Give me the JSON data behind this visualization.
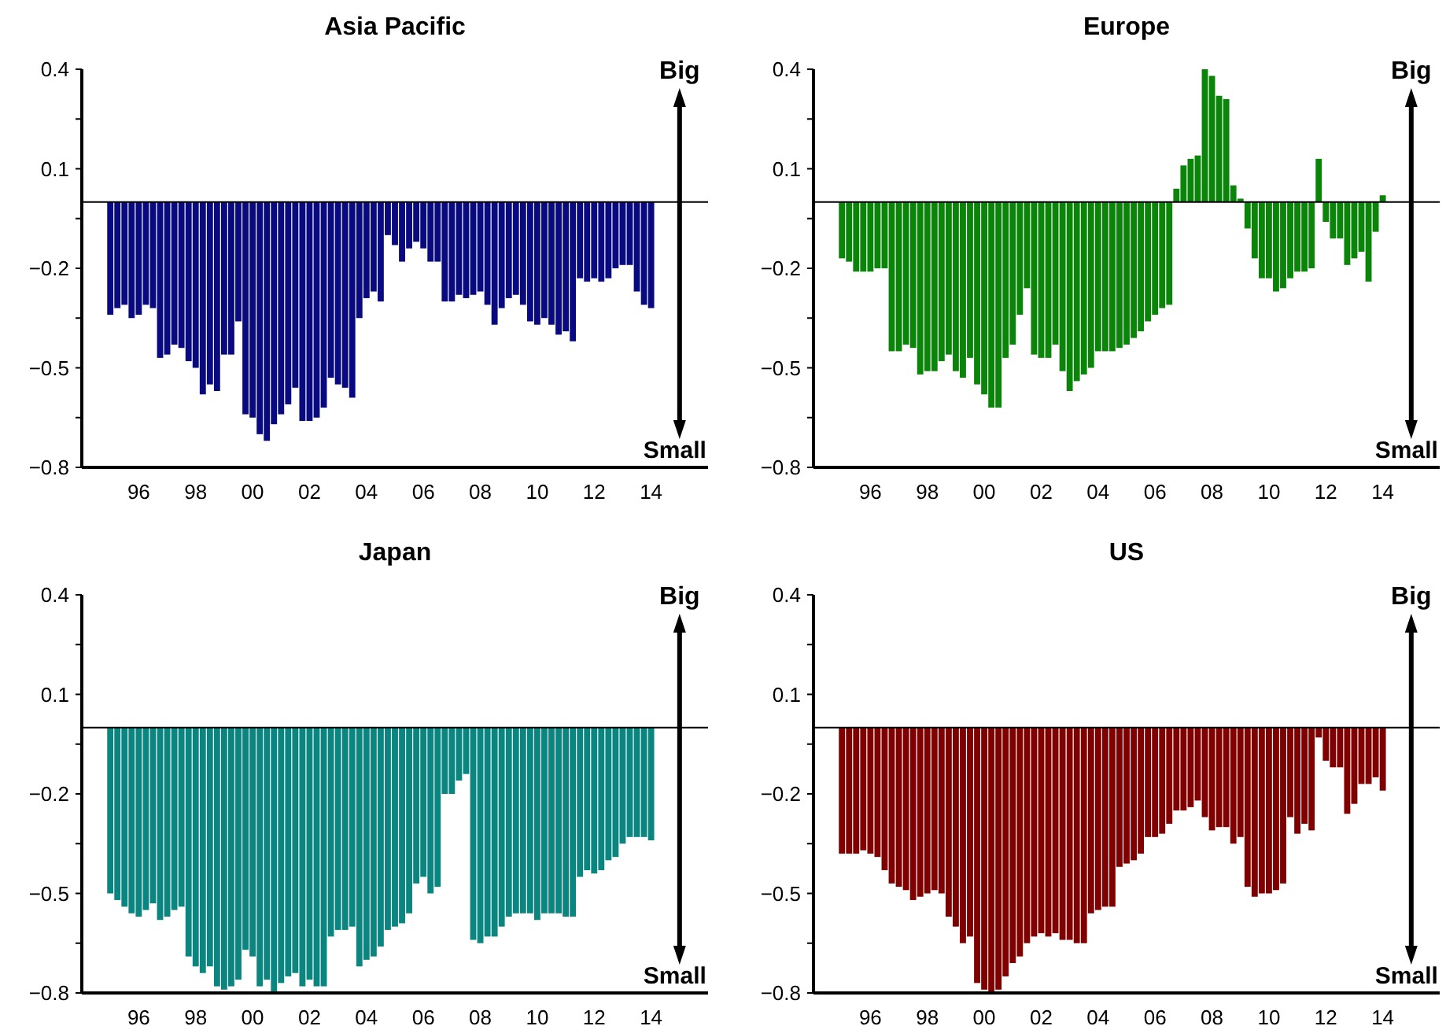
{
  "chart_data": [
    {
      "type": "bar",
      "title": "Asia Pacific",
      "color": "#0a0a80",
      "xlim": [
        1994,
        2016
      ],
      "ylim": [
        -0.8,
        0.4
      ],
      "xticks": [
        {
          "value": 1996,
          "label": "96"
        },
        {
          "value": 1998,
          "label": "98"
        },
        {
          "value": 2000,
          "label": "00"
        },
        {
          "value": 2002,
          "label": "02"
        },
        {
          "value": 2004,
          "label": "04"
        },
        {
          "value": 2006,
          "label": "06"
        },
        {
          "value": 2008,
          "label": "08"
        },
        {
          "value": 2010,
          "label": "10"
        },
        {
          "value": 2012,
          "label": "12"
        },
        {
          "value": 2014,
          "label": "14"
        }
      ],
      "yticks": [
        -0.8,
        {
          "value": -0.65,
          "label": null
        },
        -0.5,
        {
          "value": -0.35,
          "label": null
        },
        -0.2,
        {
          "value": -0.05,
          "label": null
        },
        0.1,
        {
          "value": 0.25,
          "label": null
        },
        0.4
      ],
      "ref_lines": [
        {
          "axis": "y",
          "value": 0,
          "color": "#000000"
        }
      ],
      "annotations": [
        "Big",
        "Small"
      ],
      "x": [
        1995,
        1995.25,
        1995.5,
        1995.75,
        1996,
        1996.25,
        1996.5,
        1996.75,
        1997,
        1997.25,
        1997.5,
        1997.75,
        1998,
        1998.25,
        1998.5,
        1998.75,
        1999,
        1999.25,
        1999.5,
        1999.75,
        2000,
        2000.25,
        2000.5,
        2000.75,
        2001,
        2001.25,
        2001.5,
        2001.75,
        2002,
        2002.25,
        2002.5,
        2002.75,
        2003,
        2003.25,
        2003.5,
        2003.75,
        2004,
        2004.25,
        2004.5,
        2004.75,
        2005,
        2005.25,
        2005.5,
        2005.75,
        2006,
        2006.25,
        2006.5,
        2006.75,
        2007,
        2007.25,
        2007.5,
        2007.75,
        2008,
        2008.25,
        2008.5,
        2008.75,
        2009,
        2009.25,
        2009.5,
        2009.75,
        2010,
        2010.25,
        2010.5,
        2010.75,
        2011,
        2011.25,
        2011.5,
        2011.75,
        2012,
        2012.25,
        2012.5,
        2012.75,
        2013,
        2013.25,
        2013.5,
        2013.75,
        2014
      ],
      "values": [
        -0.34,
        -0.32,
        -0.31,
        -0.35,
        -0.34,
        -0.31,
        -0.32,
        -0.47,
        -0.46,
        -0.43,
        -0.44,
        -0.48,
        -0.5,
        -0.58,
        -0.55,
        -0.57,
        -0.46,
        -0.46,
        -0.36,
        -0.64,
        -0.65,
        -0.7,
        -0.72,
        -0.67,
        -0.64,
        -0.61,
        -0.56,
        -0.66,
        -0.66,
        -0.65,
        -0.62,
        -0.53,
        -0.55,
        -0.56,
        -0.59,
        -0.35,
        -0.29,
        -0.27,
        -0.3,
        -0.1,
        -0.13,
        -0.18,
        -0.14,
        -0.12,
        -0.14,
        -0.18,
        -0.18,
        -0.3,
        -0.3,
        -0.28,
        -0.29,
        -0.28,
        -0.27,
        -0.31,
        -0.37,
        -0.32,
        -0.29,
        -0.28,
        -0.31,
        -0.36,
        -0.37,
        -0.35,
        -0.37,
        -0.4,
        -0.39,
        -0.42,
        -0.23,
        -0.24,
        -0.23,
        -0.24,
        -0.23,
        -0.2,
        -0.19,
        -0.19,
        -0.27,
        -0.31,
        -0.32
      ]
    },
    {
      "type": "bar",
      "title": "Europe",
      "color": "#0a850a",
      "xlim": [
        1994,
        2016
      ],
      "ylim": [
        -0.8,
        0.4
      ],
      "xticks": [
        {
          "value": 1996,
          "label": "96"
        },
        {
          "value": 1998,
          "label": "98"
        },
        {
          "value": 2000,
          "label": "00"
        },
        {
          "value": 2002,
          "label": "02"
        },
        {
          "value": 2004,
          "label": "04"
        },
        {
          "value": 2006,
          "label": "06"
        },
        {
          "value": 2008,
          "label": "08"
        },
        {
          "value": 2010,
          "label": "10"
        },
        {
          "value": 2012,
          "label": "12"
        },
        {
          "value": 2014,
          "label": "14"
        }
      ],
      "yticks": [
        -0.8,
        {
          "value": -0.65,
          "label": null
        },
        -0.5,
        {
          "value": -0.35,
          "label": null
        },
        -0.2,
        {
          "value": -0.05,
          "label": null
        },
        0.1,
        {
          "value": 0.25,
          "label": null
        },
        0.4
      ],
      "ref_lines": [
        {
          "axis": "y",
          "value": 0,
          "color": "#000000"
        }
      ],
      "annotations": [
        "Big",
        "Small"
      ],
      "x": [
        1995,
        1995.25,
        1995.5,
        1995.75,
        1996,
        1996.25,
        1996.5,
        1996.75,
        1997,
        1997.25,
        1997.5,
        1997.75,
        1998,
        1998.25,
        1998.5,
        1998.75,
        1999,
        1999.25,
        1999.5,
        1999.75,
        2000,
        2000.25,
        2000.5,
        2000.75,
        2001,
        2001.25,
        2001.5,
        2001.75,
        2002,
        2002.25,
        2002.5,
        2002.75,
        2003,
        2003.25,
        2003.5,
        2003.75,
        2004,
        2004.25,
        2004.5,
        2004.75,
        2005,
        2005.25,
        2005.5,
        2005.75,
        2006,
        2006.25,
        2006.5,
        2006.75,
        2007,
        2007.25,
        2007.5,
        2007.75,
        2008,
        2008.25,
        2008.5,
        2008.75,
        2009,
        2009.25,
        2009.5,
        2009.75,
        2010,
        2010.25,
        2010.5,
        2010.75,
        2011,
        2011.25,
        2011.5,
        2011.75,
        2012,
        2012.25,
        2012.5,
        2012.75,
        2013,
        2013.25,
        2013.5,
        2013.75,
        2014
      ],
      "values": [
        -0.17,
        -0.18,
        -0.21,
        -0.21,
        -0.21,
        -0.2,
        -0.2,
        -0.45,
        -0.45,
        -0.43,
        -0.44,
        -0.52,
        -0.51,
        -0.51,
        -0.48,
        -0.46,
        -0.51,
        -0.53,
        -0.47,
        -0.55,
        -0.58,
        -0.62,
        -0.62,
        -0.47,
        -0.43,
        -0.34,
        -0.26,
        -0.46,
        -0.47,
        -0.47,
        -0.43,
        -0.51,
        -0.57,
        -0.54,
        -0.52,
        -0.5,
        -0.45,
        -0.45,
        -0.45,
        -0.44,
        -0.43,
        -0.41,
        -0.39,
        -0.36,
        -0.34,
        -0.32,
        -0.31,
        0.04,
        0.11,
        0.13,
        0.14,
        0.4,
        0.38,
        0.32,
        0.31,
        0.05,
        0.01,
        -0.08,
        -0.17,
        -0.23,
        -0.23,
        -0.27,
        -0.26,
        -0.23,
        -0.21,
        -0.21,
        -0.2,
        0.13,
        -0.06,
        -0.11,
        -0.11,
        -0.19,
        -0.17,
        -0.15,
        -0.24,
        -0.09,
        0.02
      ]
    },
    {
      "type": "bar",
      "title": "Japan",
      "color": "#0a857f",
      "xlim": [
        1994,
        2016
      ],
      "ylim": [
        -0.8,
        0.4
      ],
      "xticks": [
        {
          "value": 1996,
          "label": "96"
        },
        {
          "value": 1998,
          "label": "98"
        },
        {
          "value": 2000,
          "label": "00"
        },
        {
          "value": 2002,
          "label": "02"
        },
        {
          "value": 2004,
          "label": "04"
        },
        {
          "value": 2006,
          "label": "06"
        },
        {
          "value": 2008,
          "label": "08"
        },
        {
          "value": 2010,
          "label": "10"
        },
        {
          "value": 2012,
          "label": "12"
        },
        {
          "value": 2014,
          "label": "14"
        }
      ],
      "yticks": [
        -0.8,
        {
          "value": -0.65,
          "label": null
        },
        -0.5,
        {
          "value": -0.35,
          "label": null
        },
        -0.2,
        {
          "value": -0.05,
          "label": null
        },
        0.1,
        {
          "value": 0.25,
          "label": null
        },
        0.4
      ],
      "ref_lines": [
        {
          "axis": "y",
          "value": 0,
          "color": "#000000"
        }
      ],
      "annotations": [
        "Big",
        "Small"
      ],
      "x": [
        1995,
        1995.25,
        1995.5,
        1995.75,
        1996,
        1996.25,
        1996.5,
        1996.75,
        1997,
        1997.25,
        1997.5,
        1997.75,
        1998,
        1998.25,
        1998.5,
        1998.75,
        1999,
        1999.25,
        1999.5,
        1999.75,
        2000,
        2000.25,
        2000.5,
        2000.75,
        2001,
        2001.25,
        2001.5,
        2001.75,
        2002,
        2002.25,
        2002.5,
        2002.75,
        2003,
        2003.25,
        2003.5,
        2003.75,
        2004,
        2004.25,
        2004.5,
        2004.75,
        2005,
        2005.25,
        2005.5,
        2005.75,
        2006,
        2006.25,
        2006.5,
        2006.75,
        2007,
        2007.25,
        2007.5,
        2007.75,
        2008,
        2008.25,
        2008.5,
        2008.75,
        2009,
        2009.25,
        2009.5,
        2009.75,
        2010,
        2010.25,
        2010.5,
        2010.75,
        2011,
        2011.25,
        2011.5,
        2011.75,
        2012,
        2012.25,
        2012.5,
        2012.75,
        2013,
        2013.25,
        2013.5,
        2013.75,
        2014
      ],
      "values": [
        -0.5,
        -0.52,
        -0.54,
        -0.56,
        -0.57,
        -0.55,
        -0.53,
        -0.58,
        -0.57,
        -0.55,
        -0.54,
        -0.69,
        -0.72,
        -0.74,
        -0.72,
        -0.78,
        -0.79,
        -0.78,
        -0.76,
        -0.67,
        -0.69,
        -0.78,
        -0.76,
        -0.8,
        -0.77,
        -0.75,
        -0.74,
        -0.78,
        -0.76,
        -0.78,
        -0.78,
        -0.63,
        -0.61,
        -0.61,
        -0.6,
        -0.72,
        -0.7,
        -0.69,
        -0.66,
        -0.61,
        -0.6,
        -0.59,
        -0.56,
        -0.47,
        -0.45,
        -0.5,
        -0.48,
        -0.2,
        -0.2,
        -0.16,
        -0.14,
        -0.64,
        -0.65,
        -0.63,
        -0.63,
        -0.6,
        -0.57,
        -0.56,
        -0.56,
        -0.56,
        -0.58,
        -0.56,
        -0.56,
        -0.56,
        -0.57,
        -0.57,
        -0.45,
        -0.43,
        -0.44,
        -0.43,
        -0.4,
        -0.39,
        -0.35,
        -0.33,
        -0.33,
        -0.33,
        -0.34
      ]
    },
    {
      "type": "bar",
      "title": "US",
      "color": "#800000",
      "xlim": [
        1994,
        2016
      ],
      "ylim": [
        -0.8,
        0.4
      ],
      "xticks": [
        {
          "value": 1996,
          "label": "96"
        },
        {
          "value": 1998,
          "label": "98"
        },
        {
          "value": 2000,
          "label": "00"
        },
        {
          "value": 2002,
          "label": "02"
        },
        {
          "value": 2004,
          "label": "04"
        },
        {
          "value": 2006,
          "label": "06"
        },
        {
          "value": 2008,
          "label": "08"
        },
        {
          "value": 2010,
          "label": "10"
        },
        {
          "value": 2012,
          "label": "12"
        },
        {
          "value": 2014,
          "label": "14"
        }
      ],
      "yticks": [
        -0.8,
        {
          "value": -0.65,
          "label": null
        },
        -0.5,
        {
          "value": -0.35,
          "label": null
        },
        -0.2,
        {
          "value": -0.05,
          "label": null
        },
        0.1,
        {
          "value": 0.25,
          "label": null
        },
        0.4
      ],
      "ref_lines": [
        {
          "axis": "y",
          "value": 0,
          "color": "#000000"
        }
      ],
      "annotations": [
        "Big",
        "Small"
      ],
      "x": [
        1995,
        1995.25,
        1995.5,
        1995.75,
        1996,
        1996.25,
        1996.5,
        1996.75,
        1997,
        1997.25,
        1997.5,
        1997.75,
        1998,
        1998.25,
        1998.5,
        1998.75,
        1999,
        1999.25,
        1999.5,
        1999.75,
        2000,
        2000.25,
        2000.5,
        2000.75,
        2001,
        2001.25,
        2001.5,
        2001.75,
        2002,
        2002.25,
        2002.5,
        2002.75,
        2003,
        2003.25,
        2003.5,
        2003.75,
        2004,
        2004.25,
        2004.5,
        2004.75,
        2005,
        2005.25,
        2005.5,
        2005.75,
        2006,
        2006.25,
        2006.5,
        2006.75,
        2007,
        2007.25,
        2007.5,
        2007.75,
        2008,
        2008.25,
        2008.5,
        2008.75,
        2009,
        2009.25,
        2009.5,
        2009.75,
        2010,
        2010.25,
        2010.5,
        2010.75,
        2011,
        2011.25,
        2011.5,
        2011.75,
        2012,
        2012.25,
        2012.5,
        2012.75,
        2013,
        2013.25,
        2013.5,
        2013.75,
        2014
      ],
      "values": [
        -0.38,
        -0.38,
        -0.38,
        -0.37,
        -0.38,
        -0.39,
        -0.43,
        -0.47,
        -0.48,
        -0.49,
        -0.52,
        -0.51,
        -0.5,
        -0.49,
        -0.5,
        -0.57,
        -0.6,
        -0.65,
        -0.63,
        -0.77,
        -0.79,
        -0.8,
        -0.79,
        -0.75,
        -0.71,
        -0.69,
        -0.65,
        -0.63,
        -0.62,
        -0.63,
        -0.62,
        -0.64,
        -0.64,
        -0.65,
        -0.65,
        -0.56,
        -0.55,
        -0.54,
        -0.54,
        -0.42,
        -0.41,
        -0.4,
        -0.38,
        -0.33,
        -0.33,
        -0.32,
        -0.29,
        -0.25,
        -0.25,
        -0.24,
        -0.22,
        -0.27,
        -0.31,
        -0.3,
        -0.3,
        -0.35,
        -0.33,
        -0.48,
        -0.51,
        -0.5,
        -0.5,
        -0.49,
        -0.47,
        -0.27,
        -0.32,
        -0.29,
        -0.31,
        -0.03,
        -0.1,
        -0.12,
        -0.12,
        -0.26,
        -0.23,
        -0.17,
        -0.17,
        -0.15,
        -0.19
      ]
    }
  ]
}
